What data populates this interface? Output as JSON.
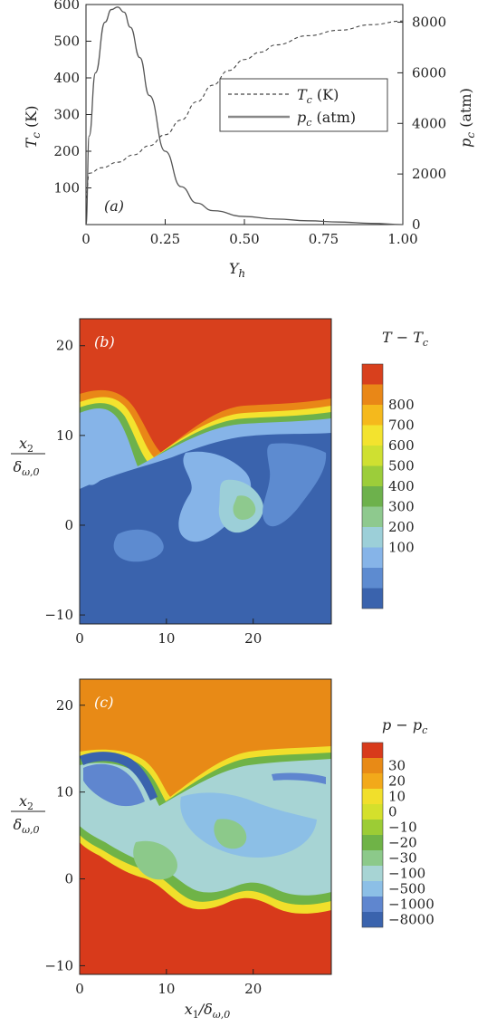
{
  "colors": {
    "temperature_line": "#444444",
    "pressure_line": "#555555",
    "field_b_scale": [
      "#3a63ad",
      "#5d8bd0",
      "#86b4e8",
      "#9ccfd8",
      "#8ec98e",
      "#6db14c",
      "#9ccd3a",
      "#cfe031",
      "#f3e32e",
      "#f5b91c",
      "#e98717",
      "#d8401d"
    ],
    "field_c_scale": [
      "#3a63ad",
      "#5f86cf",
      "#8cbfe6",
      "#a7d4d4",
      "#8cc98a",
      "#6fb347",
      "#9ccc35",
      "#d4e02c",
      "#f1df2b",
      "#f2a91a",
      "#e88a16",
      "#d83a1b"
    ]
  },
  "panel_a": {
    "label": "(a)",
    "xlabel": "Y_h",
    "ylabel_left": "T_c (K)",
    "ylabel_right": "p_c (atm)",
    "left_ticks": [
      "100",
      "200",
      "300",
      "400",
      "500",
      "600"
    ],
    "right_ticks": [
      "0",
      "2000",
      "4000",
      "6000",
      "8000"
    ],
    "x_ticks": [
      "0",
      "0.25",
      "0.50",
      "0.75",
      "1.00"
    ],
    "legend": [
      "T_c (K)",
      "p_c (atm)"
    ]
  },
  "panel_b": {
    "label": "(b)",
    "ylabel_top": "x_2",
    "ylabel_bottom": "δ_ω,0",
    "y_ticks": [
      "20",
      "10",
      "0",
      "−10"
    ],
    "x_ticks": [
      "0",
      "10",
      "20"
    ],
    "colorbar_title": "T − T_c",
    "colorbar_labels": [
      "800",
      "700",
      "600",
      "500",
      "400",
      "300",
      "200",
      "100"
    ]
  },
  "panel_c": {
    "label": "(c)",
    "ylabel_top": "x_2",
    "ylabel_bottom": "δ_ω,0",
    "y_ticks": [
      "20",
      "10",
      "0",
      "−10"
    ],
    "x_ticks": [
      "0",
      "10",
      "20"
    ],
    "xlabel": "x_1/δ_ω,0",
    "colorbar_title": "p − p_c",
    "colorbar_labels": [
      "30",
      "20",
      "10",
      "0",
      "−10",
      "−20",
      "−30",
      "−100",
      "−500",
      "−1000",
      "−8000"
    ]
  },
  "chart_data": [
    {
      "type": "line",
      "title": "",
      "xlabel": "Y_h",
      "xlim": [
        0,
        1
      ],
      "ylabel": "T_c (K)",
      "ylim": [
        0,
        600
      ],
      "y2label": "p_c (atm)",
      "y2lim": [
        0,
        8700
      ],
      "legend_position": "right",
      "series": [
        {
          "name": "T_c (K)",
          "axis": "left",
          "style": "dashed",
          "x": [
            0,
            0.01,
            0.05,
            0.1,
            0.15,
            0.2,
            0.25,
            0.3,
            0.35,
            0.4,
            0.45,
            0.5,
            0.55,
            0.6,
            0.7,
            0.8,
            0.9,
            1.0
          ],
          "y": [
            70,
            140,
            155,
            170,
            190,
            215,
            245,
            285,
            335,
            380,
            420,
            450,
            470,
            490,
            515,
            530,
            545,
            555
          ]
        },
        {
          "name": "p_c (atm)",
          "axis": "right",
          "style": "solid",
          "x": [
            0,
            0.01,
            0.03,
            0.06,
            0.08,
            0.1,
            0.12,
            0.14,
            0.17,
            0.2,
            0.25,
            0.3,
            0.35,
            0.4,
            0.5,
            0.6,
            0.7,
            0.8,
            0.9,
            1.0
          ],
          "y": [
            0,
            3500,
            6000,
            8000,
            8500,
            8600,
            8400,
            7800,
            6600,
            5100,
            2900,
            1500,
            850,
            550,
            320,
            220,
            150,
            100,
            50,
            0
          ]
        }
      ]
    },
    {
      "type": "heatmap",
      "title": "",
      "xlim": [
        0,
        29
      ],
      "ylim": [
        -11,
        23
      ],
      "x_ticks": [
        0,
        10,
        20
      ],
      "y_ticks": [
        -10,
        0,
        10,
        20
      ],
      "colorbar_title": "T − T_c",
      "colorbar_levels": [
        100,
        200,
        300,
        400,
        500,
        600,
        700,
        800
      ]
    },
    {
      "type": "heatmap",
      "title": "",
      "xlim": [
        0,
        29
      ],
      "ylim": [
        -11,
        23
      ],
      "x_ticks": [
        0,
        10,
        20
      ],
      "y_ticks": [
        -10,
        0,
        10,
        20
      ],
      "colorbar_title": "p − p_c",
      "colorbar_levels": [
        -8000,
        -1000,
        -500,
        -100,
        -30,
        -20,
        -10,
        0,
        10,
        20,
        30
      ]
    }
  ]
}
